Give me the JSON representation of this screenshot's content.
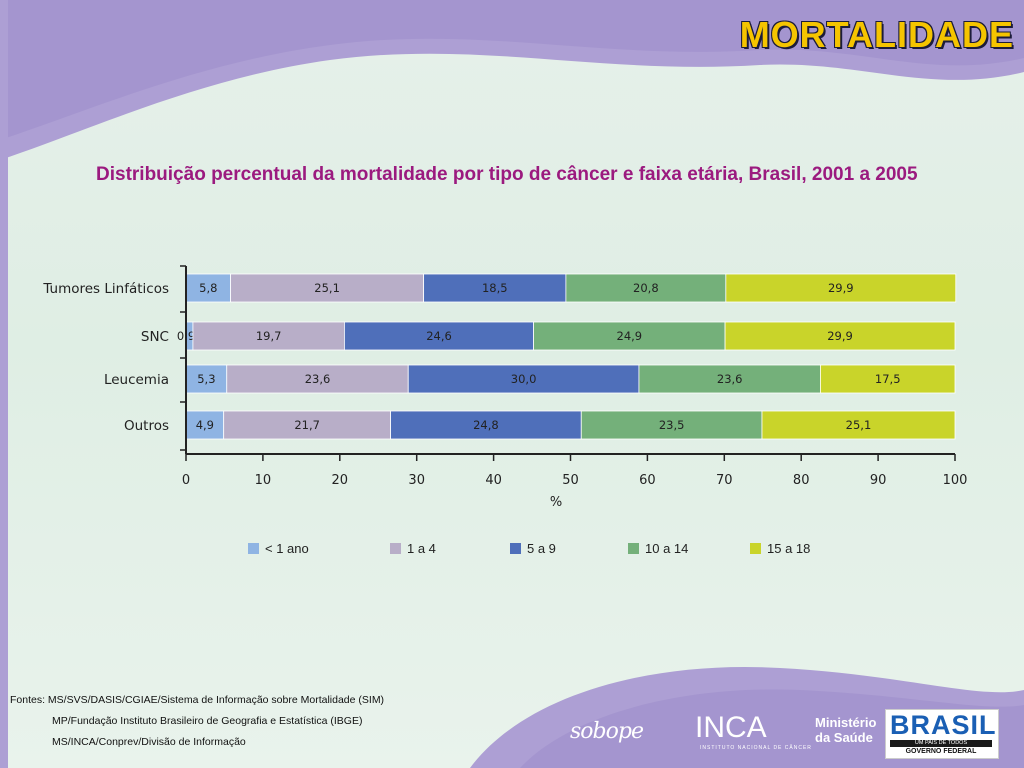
{
  "slide": {
    "banner_title": "MORTALIDADE",
    "chart_title": "Distribuição percentual da mortalidade por tipo de câncer e faixa etária, Brasil, 2001 a 2005",
    "sources": [
      "Fontes: MS/SVS/DASIS/CGIAE/Sistema de Informação sobre Mortalidade (SIM)",
      "MP/Fundação Instituto Brasileiro de Geografia e Estatística (IBGE)",
      "MS/INCA/Conprev/Divisão de Informação"
    ],
    "logos": {
      "sobope": "sobope",
      "inca": "INCA",
      "inca_sub": "INSTITUTO NACIONAL DE CÂNCER",
      "ministerio_line1": "Ministério",
      "ministerio_line2": "da Saúde",
      "brasil": "BRASIL",
      "brasil_tagline": "UM PAÍS DE TODOS",
      "brasil_gov": "GOVERNO FEDERAL"
    },
    "colors": {
      "banner_title": "#f5c400",
      "chart_title": "#9b1a7f",
      "banner": "#a99bd0"
    }
  },
  "chart_data": {
    "type": "bar",
    "orientation": "horizontal",
    "stacked": true,
    "categories": [
      "Tumores Linfáticos",
      "SNC",
      "Leucemia",
      "Outros"
    ],
    "series": [
      {
        "name": "< 1 ano",
        "color": "#8fb4e3",
        "values": [
          5.8,
          0.9,
          5.3,
          4.9
        ]
      },
      {
        "name": "1 a 4",
        "color": "#b8aec8",
        "values": [
          25.1,
          19.7,
          23.6,
          21.7
        ]
      },
      {
        "name": "5 a 9",
        "color": "#4f6fba",
        "values": [
          18.5,
          24.6,
          30.0,
          24.8
        ]
      },
      {
        "name": "10 a 14",
        "color": "#74b07a",
        "values": [
          20.8,
          24.9,
          23.6,
          23.5
        ]
      },
      {
        "name": "15 a 18",
        "color": "#c9d42a",
        "values": [
          29.9,
          29.9,
          17.5,
          25.1
        ]
      }
    ],
    "value_labels": [
      [
        "5,8",
        "25,1",
        "18,5",
        "20,8",
        "29,9"
      ],
      [
        "0,9",
        "19,7",
        "24,6",
        "24,9",
        "29,9"
      ],
      [
        "5,3",
        "23,6",
        "30,0",
        "23,6",
        "17,5"
      ],
      [
        "4,9",
        "21,7",
        "24,8",
        "23,5",
        "25,1"
      ]
    ],
    "xlim": [
      0,
      100
    ],
    "xticks": [
      "0",
      "10",
      "20",
      "30",
      "40",
      "50",
      "60",
      "70",
      "80",
      "90",
      "100"
    ],
    "xlabel": "%",
    "ylabel": "",
    "legend_position": "bottom"
  }
}
